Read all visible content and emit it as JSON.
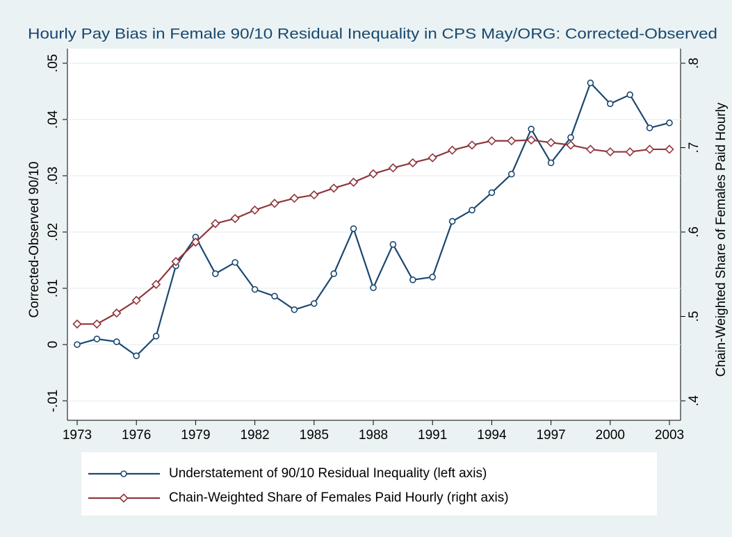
{
  "chart_data": {
    "type": "line",
    "title": "Hourly Pay Bias in Female 90/10 Residual Inequality in CPS May/ORG: Corrected-Observed",
    "y_label": "Corrected-Observed 90/10",
    "y2_label": "Chain-Weighted Share of Females Paid Hourly",
    "x": [
      1973,
      1974,
      1975,
      1976,
      1977,
      1978,
      1979,
      1980,
      1981,
      1982,
      1983,
      1984,
      1985,
      1986,
      1987,
      1988,
      1989,
      1990,
      1991,
      1992,
      1993,
      1994,
      1995,
      1996,
      1997,
      1998,
      1999,
      2000,
      2001,
      2002,
      2003
    ],
    "series": [
      {
        "name": "Understatement of 90/10 Residual Inequality (left axis)",
        "color": "#1a476f",
        "marker": "circle",
        "values": [
          0.0,
          0.001,
          0.0005,
          -0.002,
          0.0015,
          0.014,
          0.0191,
          0.0126,
          0.0146,
          0.0098,
          0.0086,
          0.0062,
          0.0073,
          0.0126,
          0.0206,
          0.0101,
          0.0178,
          0.0115,
          0.012,
          0.0219,
          0.0239,
          0.027,
          0.0303,
          0.0383,
          0.0323,
          0.0368,
          0.0465,
          0.0428,
          0.0444,
          0.0385,
          0.0394
        ]
      },
      {
        "name": "Chain-Weighted Share of Females Paid Hourly (right axis)",
        "color": "#90353b",
        "marker": "diamond",
        "axis": "y2",
        "values": [
          0.491,
          0.491,
          0.504,
          0.519,
          0.538,
          0.565,
          0.588,
          0.61,
          0.616,
          0.626,
          0.634,
          0.64,
          0.644,
          0.652,
          0.659,
          0.669,
          0.676,
          0.682,
          0.688,
          0.697,
          0.703,
          0.708,
          0.708,
          0.709,
          0.706,
          0.703,
          0.698,
          0.695,
          0.695,
          0.698,
          0.698
        ]
      }
    ],
    "xlim": [
      1973,
      2003
    ],
    "xticks": [
      1973,
      1976,
      1979,
      1982,
      1985,
      1988,
      1991,
      1994,
      1997,
      2000,
      2003
    ],
    "ylim": [
      -0.01,
      0.05
    ],
    "yticks": [
      {
        "value": -0.01,
        "label": "-.01"
      },
      0,
      {
        "value": 0.01,
        "label": ".01"
      },
      {
        "value": 0.02,
        "label": ".02"
      },
      {
        "value": 0.03,
        "label": ".03"
      },
      {
        "value": 0.04,
        "label": ".04"
      },
      {
        "value": 0.05,
        "label": ".05"
      }
    ],
    "y2lim": [
      0.4,
      0.8
    ],
    "y2ticks": [
      {
        "value": 0.4,
        "label": ".4"
      },
      {
        "value": 0.5,
        "label": ".5"
      },
      {
        "value": 0.6,
        "label": ".6"
      },
      {
        "value": 0.7,
        "label": ".7"
      },
      {
        "value": 0.8,
        "label": ".8"
      }
    ],
    "grid": true,
    "legend": "bottom"
  }
}
